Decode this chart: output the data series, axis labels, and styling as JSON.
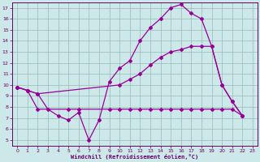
{
  "xlabel": "Windchill (Refroidissement éolien,°C)",
  "background_color": "#cce8e8",
  "grid_color": "#99bbbb",
  "line_color": "#990099",
  "xlim": [
    -0.5,
    23.5
  ],
  "ylim": [
    4.5,
    17.5
  ],
  "xticks": [
    0,
    1,
    2,
    3,
    4,
    5,
    6,
    7,
    8,
    9,
    10,
    11,
    12,
    13,
    14,
    15,
    16,
    17,
    18,
    19,
    20,
    21,
    22,
    23
  ],
  "yticks": [
    5,
    6,
    7,
    8,
    9,
    10,
    11,
    12,
    13,
    14,
    15,
    16,
    17
  ],
  "series1": [
    [
      0,
      9.8
    ],
    [
      1,
      9.5
    ],
    [
      2,
      9.2
    ],
    [
      3,
      7.8
    ],
    [
      4,
      7.2
    ],
    [
      5,
      6.8
    ],
    [
      6,
      7.5
    ],
    [
      7,
      5.0
    ],
    [
      8,
      6.8
    ],
    [
      9,
      10.3
    ],
    [
      10,
      11.5
    ],
    [
      11,
      12.2
    ],
    [
      12,
      14.0
    ],
    [
      13,
      15.2
    ],
    [
      14,
      16.0
    ],
    [
      15,
      17.0
    ],
    [
      16,
      17.3
    ],
    [
      17,
      16.5
    ],
    [
      18,
      16.0
    ],
    [
      19,
      13.5
    ],
    [
      20,
      10.0
    ],
    [
      21,
      8.5
    ],
    [
      22,
      7.2
    ]
  ],
  "series2": [
    [
      0,
      9.8
    ],
    [
      1,
      9.5
    ],
    [
      2,
      9.2
    ],
    [
      10,
      10.0
    ],
    [
      11,
      10.5
    ],
    [
      12,
      11.0
    ],
    [
      13,
      11.8
    ],
    [
      14,
      12.5
    ],
    [
      15,
      13.0
    ],
    [
      16,
      13.2
    ],
    [
      17,
      13.5
    ],
    [
      18,
      13.5
    ],
    [
      19,
      13.5
    ],
    [
      20,
      10.0
    ],
    [
      21,
      8.5
    ],
    [
      22,
      7.2
    ]
  ],
  "series3": [
    [
      0,
      9.8
    ],
    [
      1,
      9.5
    ],
    [
      2,
      7.8
    ],
    [
      5,
      7.8
    ],
    [
      6,
      7.8
    ],
    [
      9,
      7.8
    ],
    [
      10,
      7.8
    ],
    [
      11,
      7.8
    ],
    [
      12,
      7.8
    ],
    [
      13,
      7.8
    ],
    [
      14,
      7.8
    ],
    [
      15,
      7.8
    ],
    [
      16,
      7.8
    ],
    [
      17,
      7.8
    ],
    [
      18,
      7.8
    ],
    [
      19,
      7.8
    ],
    [
      20,
      7.8
    ],
    [
      21,
      7.8
    ],
    [
      22,
      7.2
    ]
  ]
}
